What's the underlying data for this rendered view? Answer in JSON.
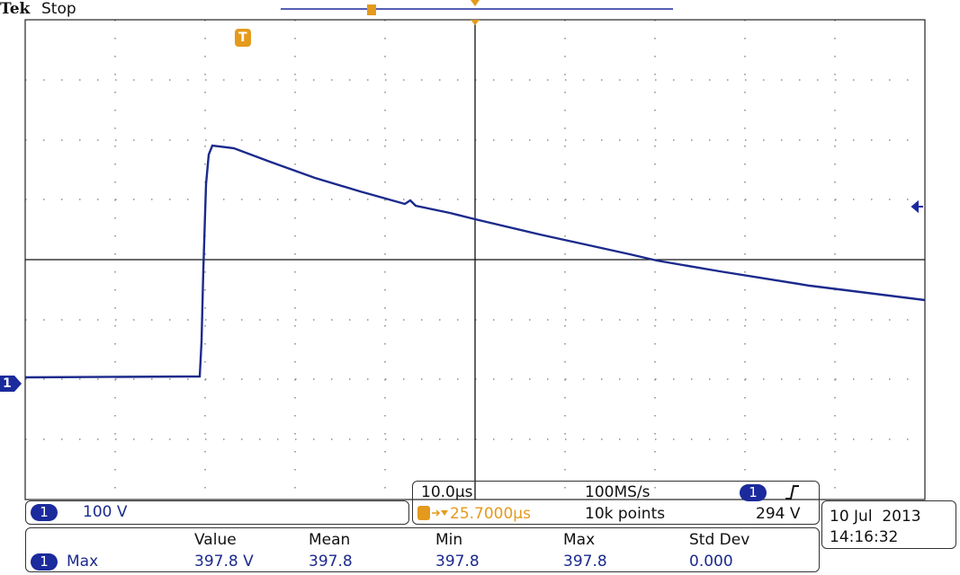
{
  "header": {
    "brand": "Tek",
    "status": "Stop"
  },
  "markers": {
    "trigger": "T",
    "channel": "1"
  },
  "channel_box": {
    "channel": "1",
    "scale": "100 V"
  },
  "timebase": {
    "time_per_div": "10.0µs",
    "sample_rate": "100MS/s",
    "trigger_position": "25.7000µs",
    "record_length": "10k points",
    "trigger_channel": "1",
    "trigger_level": "294 V"
  },
  "datetime": {
    "date": "10 Jul  2013",
    "time": "14:16:32"
  },
  "measurements": {
    "columns": [
      "Value",
      "Mean",
      "Min",
      "Max",
      "Std Dev"
    ],
    "rows": [
      {
        "channel": "1",
        "name": "Max",
        "values": [
          "397.8 V",
          "397.8",
          "397.8",
          "397.8",
          "0.000"
        ]
      }
    ]
  }
}
